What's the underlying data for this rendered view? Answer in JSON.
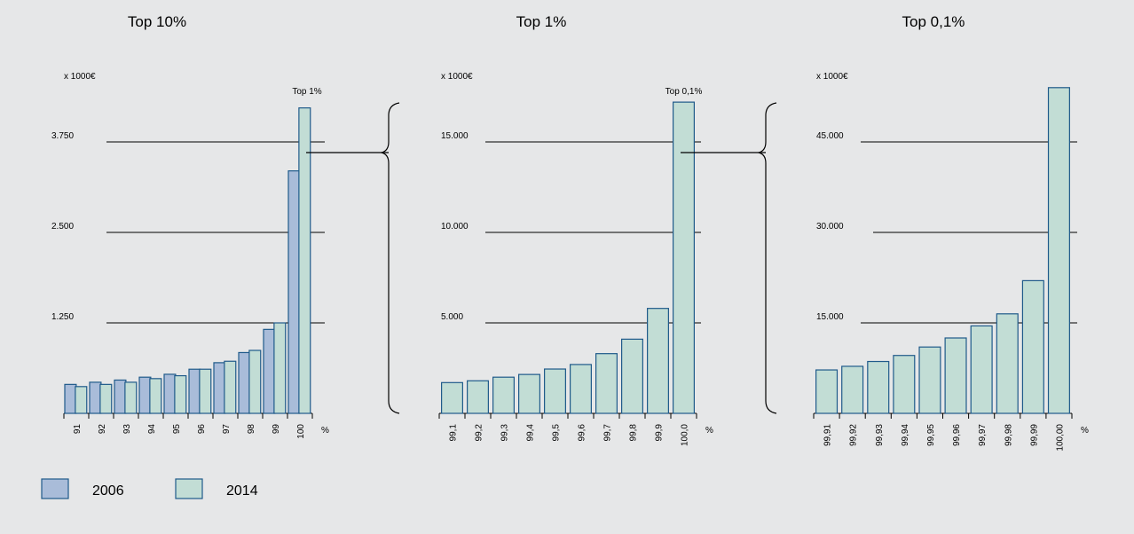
{
  "legend": [
    {
      "label": "2006",
      "color": "#a9bcd9"
    },
    {
      "label": "2014",
      "color": "#c2ddd5"
    }
  ],
  "colors": {
    "bar_2006": "#a9bcd9",
    "bar_2014": "#c2ddd5",
    "bar_stroke": "#1f5a8a",
    "background": "#e6e7e8"
  },
  "chart_data": [
    {
      "type": "bar",
      "title": "Top 10%",
      "unit_label": "x 1000€",
      "x_unit": "%",
      "categories": [
        "91",
        "92",
        "93",
        "94",
        "95",
        "96",
        "97",
        "98",
        "99",
        "100"
      ],
      "yticks": [
        {
          "value": 1250,
          "label": "1.250"
        },
        {
          "value": 2500,
          "label": "2.500"
        },
        {
          "value": 3750,
          "label": "3.750"
        }
      ],
      "ylim": [
        0,
        5000
      ],
      "grid": true,
      "series": [
        {
          "name": "2006",
          "values": [
            400,
            430,
            460,
            500,
            540,
            610,
            700,
            840,
            1160,
            3350
          ]
        },
        {
          "name": "2014",
          "values": [
            370,
            400,
            430,
            480,
            520,
            610,
            720,
            870,
            1250,
            4220
          ]
        }
      ],
      "annotation": "Top 1%"
    },
    {
      "type": "bar",
      "title": "Top 1%",
      "unit_label": "x 1000€",
      "x_unit": "%",
      "categories": [
        "99,1",
        "99,2",
        "99,3",
        "99,4",
        "99,5",
        "99,6",
        "99,7",
        "99,8",
        "99,9",
        "100,0"
      ],
      "yticks": [
        {
          "value": 5000,
          "label": "5.000"
        },
        {
          "value": 10000,
          "label": "10.000"
        },
        {
          "value": 15000,
          "label": "15.000"
        }
      ],
      "ylim": [
        0,
        20000
      ],
      "grid": true,
      "series": [
        {
          "name": "2014",
          "values": [
            1700,
            1800,
            2000,
            2150,
            2450,
            2700,
            3300,
            4100,
            5800,
            17200
          ]
        }
      ],
      "annotation": "Top 0,1%"
    },
    {
      "type": "bar",
      "title": "Top 0,1%",
      "unit_label": "x 1000€",
      "x_unit": "%",
      "categories": [
        "99,91",
        "99,92",
        "99,93",
        "99,94",
        "99,95",
        "99,96",
        "99,97",
        "99,98",
        "99,99",
        "100,00"
      ],
      "yticks": [
        {
          "value": 15000,
          "label": "15.000"
        },
        {
          "value": 30000,
          "label": "30.000"
        },
        {
          "value": 45000,
          "label": "45.000"
        }
      ],
      "ylim": [
        0,
        60000
      ],
      "grid": true,
      "series": [
        {
          "name": "2014",
          "values": [
            7200,
            7800,
            8600,
            9600,
            11000,
            12500,
            14500,
            16500,
            22000,
            54000
          ]
        }
      ]
    }
  ]
}
